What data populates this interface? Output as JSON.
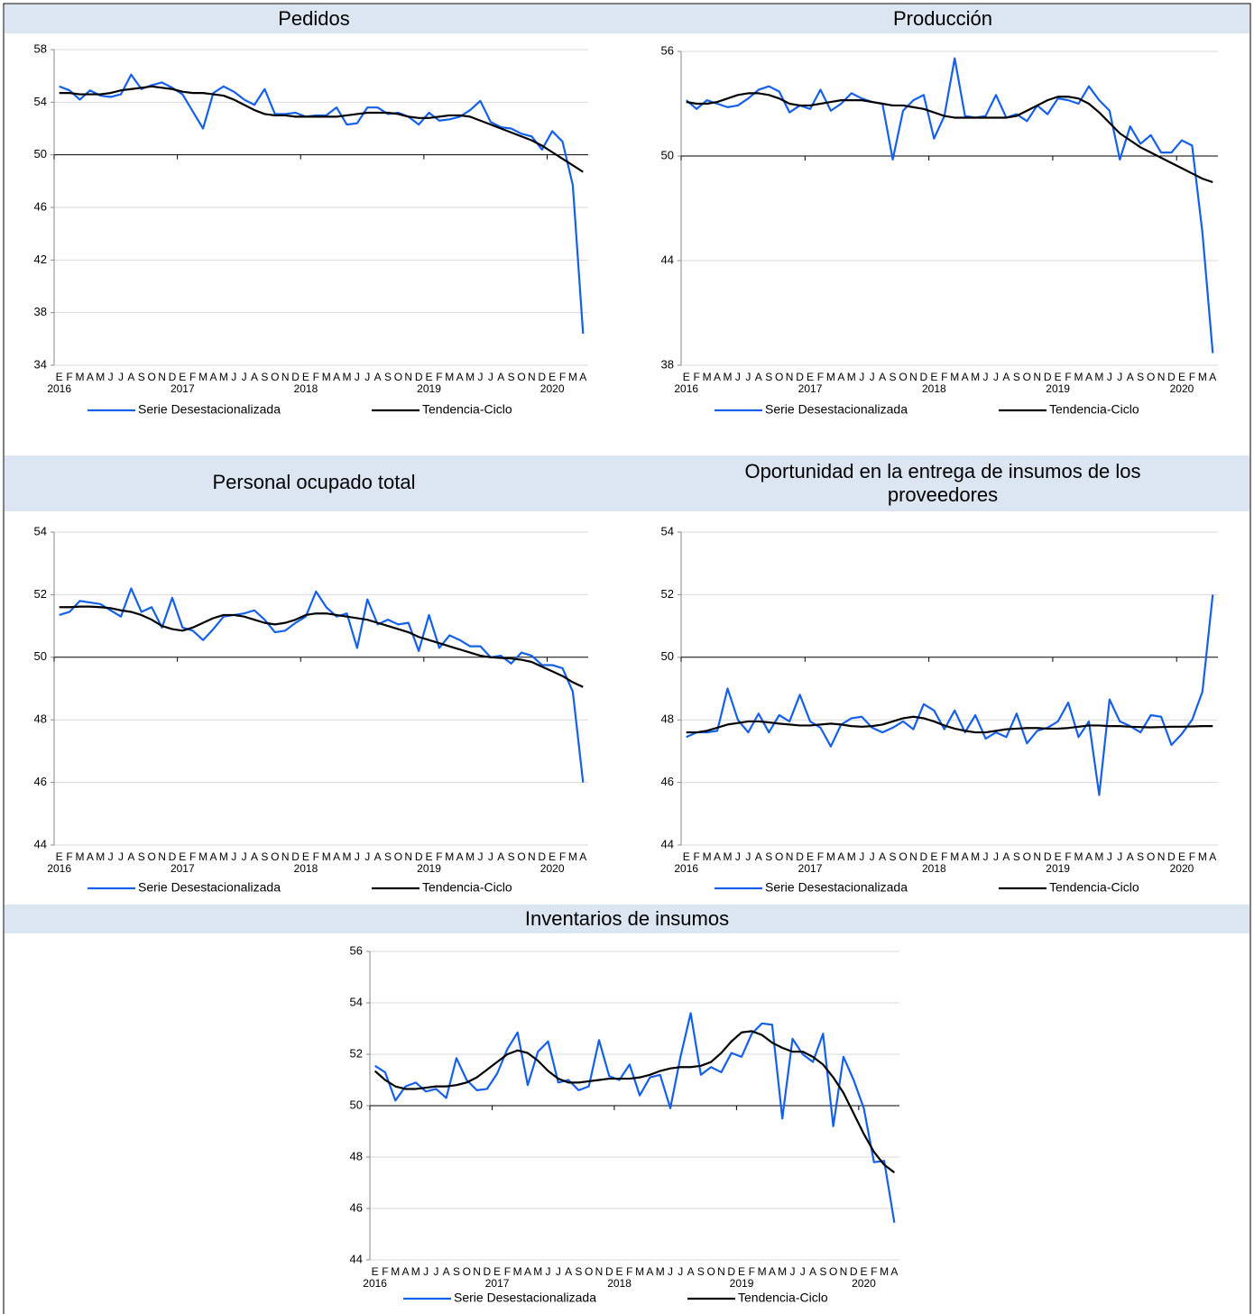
{
  "chart_data": [
    {
      "type": "line",
      "title": "Pedidos",
      "categories": [
        "E",
        "F",
        "M",
        "A",
        "M",
        "J",
        "J",
        "A",
        "S",
        "O",
        "N",
        "D",
        "E",
        "F",
        "M",
        "A",
        "M",
        "J",
        "J",
        "A",
        "S",
        "O",
        "N",
        "D",
        "E",
        "F",
        "M",
        "A",
        "M",
        "J",
        "J",
        "A",
        "S",
        "O",
        "N",
        "D",
        "E",
        "F",
        "M",
        "A",
        "M",
        "J",
        "J",
        "A",
        "S",
        "O",
        "N",
        "D",
        "E",
        "F",
        "M",
        "A"
      ],
      "year_labels": [
        "2016",
        null,
        null,
        null,
        null,
        null,
        null,
        null,
        null,
        null,
        null,
        null,
        "2017",
        null,
        null,
        null,
        null,
        null,
        null,
        null,
        null,
        null,
        null,
        null,
        "2018",
        null,
        null,
        null,
        null,
        null,
        null,
        null,
        null,
        null,
        null,
        null,
        "2019",
        null,
        null,
        null,
        null,
        null,
        null,
        null,
        null,
        null,
        null,
        null,
        "2020",
        null,
        null,
        null
      ],
      "series": [
        {
          "name": "Serie Desestacionalizada",
          "color": "#1560e8",
          "values": [
            55.2,
            54.9,
            54.2,
            54.9,
            54.5,
            54.4,
            54.6,
            56.1,
            55.0,
            55.3,
            55.5,
            55.1,
            54.6,
            53.3,
            52.0,
            54.7,
            55.2,
            54.8,
            54.2,
            53.8,
            55.0,
            53.1,
            53.1,
            53.2,
            52.9,
            53.0,
            53.0,
            53.6,
            52.3,
            52.4,
            53.6,
            53.6,
            53.1,
            53.2,
            52.9,
            52.3,
            53.2,
            52.6,
            52.7,
            52.9,
            53.4,
            54.1,
            52.5,
            52.1,
            52.0,
            51.6,
            51.4,
            50.4,
            51.8,
            51.0,
            47.7,
            36.4
          ]
        },
        {
          "name": "Tendencia-Ciclo",
          "color": "#000000",
          "values": [
            54.7,
            54.7,
            54.6,
            54.6,
            54.6,
            54.7,
            54.9,
            55.0,
            55.1,
            55.2,
            55.1,
            55.0,
            54.8,
            54.7,
            54.7,
            54.6,
            54.5,
            54.2,
            53.8,
            53.4,
            53.1,
            53.0,
            53.0,
            52.9,
            52.9,
            52.9,
            52.9,
            52.9,
            53.0,
            53.1,
            53.2,
            53.2,
            53.2,
            53.1,
            52.9,
            52.8,
            52.8,
            52.9,
            53.0,
            53.0,
            52.9,
            52.6,
            52.3,
            52.0,
            51.7,
            51.4,
            51.1,
            50.7,
            50.2,
            49.7,
            49.2,
            48.7
          ]
        }
      ],
      "ylim": [
        34,
        58
      ],
      "yticks": [
        34,
        38,
        42,
        46,
        50,
        54,
        58
      ],
      "grid": true,
      "xaxis_crosses": 50
    },
    {
      "type": "line",
      "title": "Producción",
      "categories": [
        "E",
        "F",
        "M",
        "A",
        "M",
        "J",
        "J",
        "A",
        "S",
        "O",
        "N",
        "D",
        "E",
        "F",
        "M",
        "A",
        "M",
        "J",
        "J",
        "A",
        "S",
        "O",
        "N",
        "D",
        "E",
        "F",
        "M",
        "A",
        "M",
        "J",
        "J",
        "A",
        "S",
        "O",
        "N",
        "D",
        "E",
        "F",
        "M",
        "A",
        "M",
        "J",
        "J",
        "A",
        "S",
        "O",
        "N",
        "D",
        "E",
        "F",
        "M",
        "A"
      ],
      "year_labels": [
        "2016",
        null,
        null,
        null,
        null,
        null,
        null,
        null,
        null,
        null,
        null,
        null,
        "2017",
        null,
        null,
        null,
        null,
        null,
        null,
        null,
        null,
        null,
        null,
        null,
        "2018",
        null,
        null,
        null,
        null,
        null,
        null,
        null,
        null,
        null,
        null,
        null,
        "2019",
        null,
        null,
        null,
        null,
        null,
        null,
        null,
        null,
        null,
        null,
        null,
        "2020",
        null,
        null,
        null
      ],
      "series": [
        {
          "name": "Serie Desestacionalizada",
          "color": "#1560e8",
          "values": [
            53.2,
            52.7,
            53.2,
            53.0,
            52.8,
            52.9,
            53.3,
            53.8,
            54.0,
            53.7,
            52.5,
            52.9,
            52.7,
            53.8,
            52.6,
            53.0,
            53.6,
            53.3,
            53.1,
            53.0,
            49.8,
            52.6,
            53.2,
            53.5,
            51.0,
            52.3,
            55.6,
            52.3,
            52.2,
            52.3,
            53.5,
            52.2,
            52.4,
            52.0,
            52.9,
            52.4,
            53.3,
            53.2,
            53.0,
            54.0,
            53.2,
            52.6,
            49.8,
            51.7,
            50.7,
            51.2,
            50.2,
            50.2,
            50.9,
            50.6,
            45.6,
            38.7
          ]
        },
        {
          "name": "Tendencia-Ciclo",
          "color": "#000000",
          "values": [
            53.1,
            53.0,
            53.0,
            53.1,
            53.3,
            53.5,
            53.6,
            53.6,
            53.5,
            53.3,
            53.0,
            52.9,
            52.9,
            53.0,
            53.1,
            53.2,
            53.2,
            53.2,
            53.1,
            53.0,
            52.9,
            52.9,
            52.8,
            52.7,
            52.5,
            52.3,
            52.2,
            52.2,
            52.2,
            52.2,
            52.2,
            52.2,
            52.3,
            52.6,
            52.9,
            53.2,
            53.4,
            53.4,
            53.3,
            53.0,
            52.5,
            51.9,
            51.3,
            50.9,
            50.5,
            50.2,
            49.9,
            49.6,
            49.3,
            49.0,
            48.7,
            48.5
          ]
        }
      ],
      "ylim": [
        38,
        56
      ],
      "yticks": [
        38,
        44,
        50,
        56
      ],
      "grid": true,
      "xaxis_crosses": 50
    },
    {
      "type": "line",
      "title": "Personal ocupado total",
      "categories": [
        "E",
        "F",
        "M",
        "A",
        "M",
        "J",
        "J",
        "A",
        "S",
        "O",
        "N",
        "D",
        "E",
        "F",
        "M",
        "A",
        "M",
        "J",
        "J",
        "A",
        "S",
        "O",
        "N",
        "D",
        "E",
        "F",
        "M",
        "A",
        "M",
        "J",
        "J",
        "A",
        "S",
        "O",
        "N",
        "D",
        "E",
        "F",
        "M",
        "A",
        "M",
        "J",
        "J",
        "A",
        "S",
        "O",
        "N",
        "D",
        "E",
        "F",
        "M",
        "A"
      ],
      "year_labels": [
        "2016",
        null,
        null,
        null,
        null,
        null,
        null,
        null,
        null,
        null,
        null,
        null,
        "2017",
        null,
        null,
        null,
        null,
        null,
        null,
        null,
        null,
        null,
        null,
        null,
        "2018",
        null,
        null,
        null,
        null,
        null,
        null,
        null,
        null,
        null,
        null,
        null,
        "2019",
        null,
        null,
        null,
        null,
        null,
        null,
        null,
        null,
        null,
        null,
        null,
        "2020",
        null,
        null,
        null
      ],
      "series": [
        {
          "name": "Serie Desestacionalizada",
          "color": "#1560e8",
          "values": [
            51.35,
            51.45,
            51.8,
            51.75,
            51.7,
            51.5,
            51.3,
            52.2,
            51.45,
            51.6,
            50.95,
            51.9,
            50.95,
            50.85,
            50.55,
            50.9,
            51.3,
            51.35,
            51.4,
            51.5,
            51.2,
            50.8,
            50.85,
            51.1,
            51.3,
            52.1,
            51.6,
            51.3,
            51.4,
            50.3,
            51.85,
            51.05,
            51.2,
            51.05,
            51.1,
            50.2,
            51.35,
            50.3,
            50.7,
            50.55,
            50.35,
            50.35,
            50.0,
            50.05,
            49.8,
            50.15,
            50.05,
            49.75,
            49.75,
            49.65,
            48.9,
            46.0
          ]
        },
        {
          "name": "Tendencia-Ciclo",
          "color": "#000000",
          "values": [
            51.6,
            51.6,
            51.62,
            51.62,
            51.6,
            51.57,
            51.5,
            51.45,
            51.35,
            51.2,
            51.0,
            50.9,
            50.85,
            50.95,
            51.1,
            51.25,
            51.35,
            51.35,
            51.3,
            51.2,
            51.1,
            51.05,
            51.1,
            51.2,
            51.35,
            51.4,
            51.4,
            51.35,
            51.3,
            51.25,
            51.2,
            51.1,
            51.0,
            50.9,
            50.8,
            50.65,
            50.55,
            50.45,
            50.35,
            50.25,
            50.15,
            50.05,
            50.0,
            49.98,
            49.96,
            49.92,
            49.85,
            49.7,
            49.55,
            49.4,
            49.2,
            49.05
          ]
        }
      ],
      "ylim": [
        44,
        54
      ],
      "yticks": [
        44,
        46,
        48,
        50,
        52,
        54
      ],
      "grid": true,
      "xaxis_crosses": 50
    },
    {
      "type": "line",
      "title": "Oportunidad en la entrega de insumos de los proveedores",
      "categories": [
        "E",
        "F",
        "M",
        "A",
        "M",
        "J",
        "J",
        "A",
        "S",
        "O",
        "N",
        "D",
        "E",
        "F",
        "M",
        "A",
        "M",
        "J",
        "J",
        "A",
        "S",
        "O",
        "N",
        "D",
        "E",
        "F",
        "M",
        "A",
        "M",
        "J",
        "J",
        "A",
        "S",
        "O",
        "N",
        "D",
        "E",
        "F",
        "M",
        "A",
        "M",
        "J",
        "J",
        "A",
        "S",
        "O",
        "N",
        "D",
        "E",
        "F",
        "M",
        "A"
      ],
      "year_labels": [
        "2016",
        null,
        null,
        null,
        null,
        null,
        null,
        null,
        null,
        null,
        null,
        null,
        "2017",
        null,
        null,
        null,
        null,
        null,
        null,
        null,
        null,
        null,
        null,
        null,
        "2018",
        null,
        null,
        null,
        null,
        null,
        null,
        null,
        null,
        null,
        null,
        null,
        "2019",
        null,
        null,
        null,
        null,
        null,
        null,
        null,
        null,
        null,
        null,
        null,
        "2020",
        null,
        null,
        null
      ],
      "series": [
        {
          "name": "Serie Desestacionalizada",
          "color": "#1560e8",
          "values": [
            47.45,
            47.6,
            47.6,
            47.65,
            49.0,
            48.0,
            47.6,
            48.2,
            47.6,
            48.15,
            47.95,
            48.8,
            47.95,
            47.75,
            47.15,
            47.85,
            48.05,
            48.1,
            47.75,
            47.6,
            47.75,
            47.95,
            47.7,
            48.5,
            48.3,
            47.7,
            48.3,
            47.6,
            48.15,
            47.4,
            47.6,
            47.45,
            48.2,
            47.25,
            47.65,
            47.75,
            47.95,
            48.55,
            47.45,
            47.95,
            45.6,
            48.65,
            47.95,
            47.8,
            47.6,
            48.15,
            48.1,
            47.2,
            47.55,
            48.0,
            48.9,
            52.0
          ]
        },
        {
          "name": "Tendencia-Ciclo",
          "color": "#000000",
          "values": [
            47.6,
            47.6,
            47.65,
            47.75,
            47.85,
            47.9,
            47.95,
            47.95,
            47.92,
            47.88,
            47.85,
            47.82,
            47.82,
            47.85,
            47.88,
            47.85,
            47.8,
            47.78,
            47.8,
            47.85,
            47.95,
            48.05,
            48.1,
            48.05,
            47.95,
            47.82,
            47.72,
            47.65,
            47.6,
            47.6,
            47.65,
            47.7,
            47.72,
            47.74,
            47.74,
            47.72,
            47.72,
            47.74,
            47.78,
            47.82,
            47.82,
            47.8,
            47.8,
            47.78,
            47.77,
            47.76,
            47.77,
            47.78,
            47.78,
            47.79,
            47.8,
            47.8
          ]
        }
      ],
      "ylim": [
        44,
        54
      ],
      "yticks": [
        44,
        46,
        48,
        50,
        52,
        54
      ],
      "grid": true,
      "xaxis_crosses": 50
    },
    {
      "type": "line",
      "title": "Inventarios de insumos",
      "categories": [
        "E",
        "F",
        "M",
        "A",
        "M",
        "J",
        "J",
        "A",
        "S",
        "O",
        "N",
        "D",
        "E",
        "F",
        "M",
        "A",
        "M",
        "J",
        "J",
        "A",
        "S",
        "O",
        "N",
        "D",
        "E",
        "F",
        "M",
        "A",
        "M",
        "J",
        "J",
        "A",
        "S",
        "O",
        "N",
        "D",
        "E",
        "F",
        "M",
        "A",
        "M",
        "J",
        "J",
        "A",
        "S",
        "O",
        "N",
        "D",
        "E",
        "F",
        "M",
        "A"
      ],
      "year_labels": [
        "2016",
        null,
        null,
        null,
        null,
        null,
        null,
        null,
        null,
        null,
        null,
        null,
        "2017",
        null,
        null,
        null,
        null,
        null,
        null,
        null,
        null,
        null,
        null,
        null,
        "2018",
        null,
        null,
        null,
        null,
        null,
        null,
        null,
        null,
        null,
        null,
        null,
        "2019",
        null,
        null,
        null,
        null,
        null,
        null,
        null,
        null,
        null,
        null,
        null,
        "2020",
        null,
        null,
        null
      ],
      "series": [
        {
          "name": "Serie Desestacionalizada",
          "color": "#1560e8",
          "values": [
            51.55,
            51.3,
            50.2,
            50.75,
            50.9,
            50.55,
            50.65,
            50.3,
            51.85,
            51.0,
            50.6,
            50.65,
            51.25,
            52.2,
            52.85,
            50.8,
            52.1,
            52.5,
            50.9,
            51.0,
            50.6,
            50.75,
            52.55,
            51.15,
            51.0,
            51.6,
            50.4,
            51.1,
            51.2,
            49.9,
            51.9,
            53.6,
            51.2,
            51.5,
            51.3,
            52.05,
            51.9,
            52.8,
            53.2,
            53.15,
            49.5,
            52.6,
            52.0,
            51.7,
            52.8,
            49.2,
            51.9,
            51.0,
            49.9,
            47.8,
            47.85,
            45.45
          ]
        },
        {
          "name": "Tendencia-Ciclo",
          "color": "#000000",
          "values": [
            51.35,
            51.0,
            50.75,
            50.65,
            50.65,
            50.7,
            50.75,
            50.75,
            50.8,
            50.9,
            51.1,
            51.4,
            51.7,
            52.0,
            52.15,
            52.05,
            51.75,
            51.35,
            51.05,
            50.9,
            50.9,
            50.95,
            51.0,
            51.05,
            51.05,
            51.05,
            51.1,
            51.2,
            51.35,
            51.45,
            51.5,
            51.5,
            51.55,
            51.7,
            52.05,
            52.5,
            52.85,
            52.9,
            52.75,
            52.45,
            52.25,
            52.1,
            52.1,
            51.9,
            51.6,
            51.1,
            50.5,
            49.7,
            48.9,
            48.2,
            47.7,
            47.4
          ]
        }
      ],
      "ylim": [
        44,
        56
      ],
      "yticks": [
        44,
        46,
        48,
        50,
        52,
        54,
        56
      ],
      "grid": true,
      "xaxis_crosses": 50
    }
  ]
}
